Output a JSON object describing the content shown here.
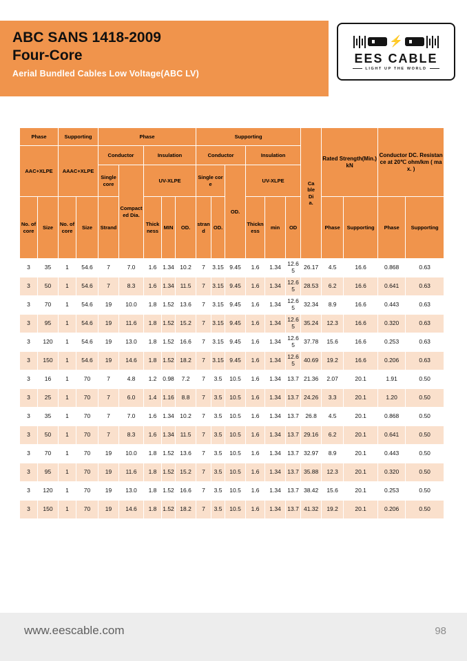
{
  "header": {
    "title": "ABC SANS 1418-2009",
    "subtitle": "Four-Core",
    "tagline": "Aerial Bundled Cables Low Voltage(ABC LV)"
  },
  "logo": {
    "name": "EES CABLE",
    "tagline": "LIGHT UP THE WORLD",
    "bolt_icon": "⚡"
  },
  "colors": {
    "accent_orange": "#F0944C",
    "row_alt": "#FAE0CC",
    "logo_bolt": "#F28A1E"
  },
  "table": {
    "header": {
      "phase": "Phase",
      "supporting": "Supporting",
      "aac_xlpe": "AAC+XLPE",
      "aaac_xlpe": "AAAC+XLPE",
      "conductor": "Conductor",
      "insulation": "Insulation",
      "single_core": "Single core",
      "compacted_dia": "Compacted Dia.",
      "uv_xlpe": "UV-XLPE",
      "od_dot": "OD.",
      "od": "OD",
      "no_of_core": "No. of core",
      "size": "Size",
      "strand_upper": "Strand",
      "strand_lower": "strand",
      "thickness": "Thickness",
      "min_upper": "MIN",
      "min_lower": "min",
      "cable_dia": "Cable Dia.",
      "rated_strength": "Rated Strength(Min.)kN",
      "dc_resistance": "Conductor DC. Resistance  at 20℃  ohm/km ( max. )"
    },
    "rows": [
      [
        "3",
        "35",
        "1",
        "54.6",
        "7",
        "7.0",
        "1.6",
        "1.34",
        "10.2",
        "7",
        "3.15",
        "9.45",
        "1.6",
        "1.34",
        "12.65",
        "26.17",
        "4.5",
        "16.6",
        "0.868",
        "0.63"
      ],
      [
        "3",
        "50",
        "1",
        "54.6",
        "7",
        "8.3",
        "1.6",
        "1.34",
        "11.5",
        "7",
        "3.15",
        "9.45",
        "1.6",
        "1.34",
        "12.65",
        "28.53",
        "6.2",
        "16.6",
        "0.641",
        "0.63"
      ],
      [
        "3",
        "70",
        "1",
        "54.6",
        "19",
        "10.0",
        "1.8",
        "1.52",
        "13.6",
        "7",
        "3.15",
        "9.45",
        "1.6",
        "1.34",
        "12.65",
        "32.34",
        "8.9",
        "16.6",
        "0.443",
        "0.63"
      ],
      [
        "3",
        "95",
        "1",
        "54.6",
        "19",
        "11.6",
        "1.8",
        "1.52",
        "15.2",
        "7",
        "3.15",
        "9.45",
        "1.6",
        "1.34",
        "12.65",
        "35.24",
        "12.3",
        "16.6",
        "0.320",
        "0.63"
      ],
      [
        "3",
        "120",
        "1",
        "54.6",
        "19",
        "13.0",
        "1.8",
        "1.52",
        "16.6",
        "7",
        "3.15",
        "9.45",
        "1.6",
        "1.34",
        "12.65",
        "37.78",
        "15.6",
        "16.6",
        "0.253",
        "0.63"
      ],
      [
        "3",
        "150",
        "1",
        "54.6",
        "19",
        "14.6",
        "1.8",
        "1.52",
        "18.2",
        "7",
        "3.15",
        "9.45",
        "1.6",
        "1.34",
        "12.65",
        "40.69",
        "19.2",
        "16.6",
        "0.206",
        "0.63"
      ],
      [
        "3",
        "16",
        "1",
        "70",
        "7",
        "4.8",
        "1.2",
        "0.98",
        "7.2",
        "7",
        "3.5",
        "10.5",
        "1.6",
        "1.34",
        "13.7",
        "21.36",
        "2.07",
        "20.1",
        "1.91",
        "0.50"
      ],
      [
        "3",
        "25",
        "1",
        "70",
        "7",
        "6.0",
        "1.4",
        "1.16",
        "8.8",
        "7",
        "3.5",
        "10.5",
        "1.6",
        "1.34",
        "13.7",
        "24.26",
        "3.3",
        "20.1",
        "1.20",
        "0.50"
      ],
      [
        "3",
        "35",
        "1",
        "70",
        "7",
        "7.0",
        "1.6",
        "1.34",
        "10.2",
        "7",
        "3.5",
        "10.5",
        "1.6",
        "1.34",
        "13.7",
        "26.8",
        "4.5",
        "20.1",
        "0.868",
        "0.50"
      ],
      [
        "3",
        "50",
        "1",
        "70",
        "7",
        "8.3",
        "1.6",
        "1.34",
        "11.5",
        "7",
        "3.5",
        "10.5",
        "1.6",
        "1.34",
        "13.7",
        "29.16",
        "6.2",
        "20.1",
        "0.641",
        "0.50"
      ],
      [
        "3",
        "70",
        "1",
        "70",
        "19",
        "10.0",
        "1.8",
        "1.52",
        "13.6",
        "7",
        "3.5",
        "10.5",
        "1.6",
        "1.34",
        "13.7",
        "32.97",
        "8.9",
        "20.1",
        "0.443",
        "0.50"
      ],
      [
        "3",
        "95",
        "1",
        "70",
        "19",
        "11.6",
        "1.8",
        "1.52",
        "15.2",
        "7",
        "3.5",
        "10.5",
        "1.6",
        "1.34",
        "13.7",
        "35.88",
        "12.3",
        "20.1",
        "0.320",
        "0.50"
      ],
      [
        "3",
        "120",
        "1",
        "70",
        "19",
        "13.0",
        "1.8",
        "1.52",
        "16.6",
        "7",
        "3.5",
        "10.5",
        "1.6",
        "1.34",
        "13.7",
        "38.42",
        "15.6",
        "20.1",
        "0.253",
        "0.50"
      ],
      [
        "3",
        "150",
        "1",
        "70",
        "19",
        "14.6",
        "1.8",
        "1.52",
        "18.2",
        "7",
        "3.5",
        "10.5",
        "1.6",
        "1.34",
        "13.7",
        "41.32",
        "19.2",
        "20.1",
        "0.206",
        "0.50"
      ]
    ]
  },
  "footer": {
    "website": "www.eescable.com",
    "page_number": "98"
  }
}
